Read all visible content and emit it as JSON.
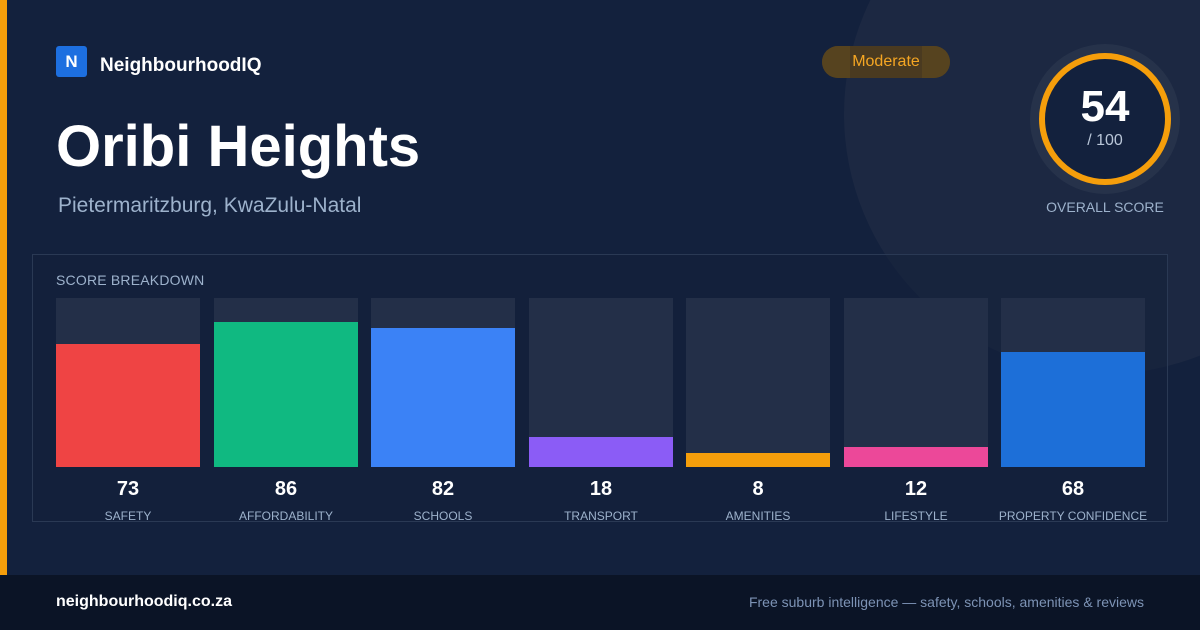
{
  "brand": {
    "logo_letter": "N",
    "name": "NeighbourhoodIQ"
  },
  "header": {
    "title": "Oribi Heights",
    "subtitle": "Pietermaritzburg, KwaZulu-Natal",
    "badge": "Moderate"
  },
  "overall": {
    "value": "54",
    "max": "/ 100",
    "label": "OVERALL SCORE",
    "fraction": 0.54
  },
  "breakdown": {
    "title": "SCORE BREAKDOWN",
    "items": [
      {
        "label": "SAFETY",
        "value": "73",
        "fraction": 0.73,
        "color": "#ef4444"
      },
      {
        "label": "AFFORDABILITY",
        "value": "86",
        "fraction": 0.86,
        "color": "#10b981"
      },
      {
        "label": "SCHOOLS",
        "value": "82",
        "fraction": 0.82,
        "color": "#3b82f6"
      },
      {
        "label": "TRANSPORT",
        "value": "18",
        "fraction": 0.18,
        "color": "#8b5cf6"
      },
      {
        "label": "AMENITIES",
        "value": "8",
        "fraction": 0.08,
        "color": "#f59e0b"
      },
      {
        "label": "LIFESTYLE",
        "value": "12",
        "fraction": 0.12,
        "color": "#ec4899"
      },
      {
        "label": "PROPERTY CONFIDENCE",
        "value": "68",
        "fraction": 0.68,
        "color": "#1d6fd8"
      }
    ]
  },
  "footer": {
    "url": "neighbourhoodiq.co.za",
    "tagline": "Free suburb intelligence — safety, schools, amenities & reviews"
  },
  "colors": {
    "accent": "#f59e0b",
    "background": "#13213d",
    "brand_blue": "#1d6fe0"
  }
}
